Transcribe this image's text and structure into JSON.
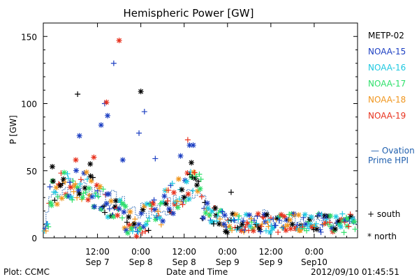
{
  "chart_data": {
    "type": "scatter",
    "title": "Hemispheric Power [GW]",
    "ylabel": "P [GW]",
    "xlabel": "Date and Time",
    "ylim": [
      0,
      160
    ],
    "yticks": [
      0,
      50,
      100,
      150
    ],
    "xlim_hours": [
      0,
      87
    ],
    "x_tick_labels": [
      {
        "time": "12:00",
        "date": "Sep 7"
      },
      {
        "time": "0:00",
        "date": "Sep 8"
      },
      {
        "time": "12:00",
        "date": "Sep 8"
      },
      {
        "time": "0:00",
        "date": "Sep 9"
      },
      {
        "time": "12:00",
        "date": "Sep 9"
      },
      {
        "time": "0:00",
        "date": "Sep10"
      }
    ],
    "series": [
      {
        "name": "METP-02",
        "color": "#000000"
      },
      {
        "name": "NOAA-15",
        "color": "#1c3fc2"
      },
      {
        "name": "NOAA-16",
        "color": "#1ec8e0"
      },
      {
        "name": "NOAA-17",
        "color": "#2ee06a"
      },
      {
        "name": "NOAA-18",
        "color": "#f0961e"
      },
      {
        "name": "NOAA-19",
        "color": "#e8321e"
      }
    ],
    "highlight_points": [
      {
        "series": "METP-02",
        "x": 9.5,
        "y": 107,
        "marker": "+"
      },
      {
        "series": "NOAA-15",
        "x": 10,
        "y": 76,
        "marker": "*"
      },
      {
        "series": "NOAA-15",
        "x": 16,
        "y": 84,
        "marker": "*"
      },
      {
        "series": "NOAA-15",
        "x": 17,
        "y": 100,
        "marker": "+"
      },
      {
        "series": "NOAA-15",
        "x": 17.8,
        "y": 91,
        "marker": "*"
      },
      {
        "series": "NOAA-19",
        "x": 17.5,
        "y": 101,
        "marker": "*"
      },
      {
        "series": "NOAA-15",
        "x": 19.5,
        "y": 130,
        "marker": "+"
      },
      {
        "series": "NOAA-19",
        "x": 21,
        "y": 147,
        "marker": "*"
      },
      {
        "series": "NOAA-15",
        "x": 26.5,
        "y": 78,
        "marker": "+"
      },
      {
        "series": "METP-02",
        "x": 27,
        "y": 109,
        "marker": "*"
      },
      {
        "series": "NOAA-15",
        "x": 28,
        "y": 94,
        "marker": "+"
      },
      {
        "series": "NOAA-19",
        "x": 40,
        "y": 73,
        "marker": "+"
      },
      {
        "series": "NOAA-15",
        "x": 40.5,
        "y": 69,
        "marker": "*"
      },
      {
        "series": "NOAA-15",
        "x": 41.5,
        "y": 69,
        "marker": "*"
      },
      {
        "series": "METP-02",
        "x": 41,
        "y": 56,
        "marker": "*"
      },
      {
        "series": "METP-02",
        "x": 2.5,
        "y": 53,
        "marker": "*"
      },
      {
        "series": "NOAA-19",
        "x": 9,
        "y": 58,
        "marker": "*"
      },
      {
        "series": "METP-02",
        "x": 13,
        "y": 55,
        "marker": "*"
      },
      {
        "series": "NOAA-19",
        "x": 14,
        "y": 60,
        "marker": "*"
      },
      {
        "series": "NOAA-15",
        "x": 22,
        "y": 58,
        "marker": "*"
      },
      {
        "series": "NOAA-15",
        "x": 31,
        "y": 59,
        "marker": "+"
      },
      {
        "series": "NOAA-15",
        "x": 38,
        "y": 61,
        "marker": "*"
      },
      {
        "series": "METP-02",
        "x": 52,
        "y": 34,
        "marker": "+"
      }
    ]
  },
  "legend": {
    "satellites": [
      {
        "label": "METP-02",
        "color": "#000000"
      },
      {
        "label": "NOAA-15",
        "color": "#1c3fc2"
      },
      {
        "label": "NOAA-16",
        "color": "#1ec8e0"
      },
      {
        "label": "NOAA-17",
        "color": "#2ee06a"
      },
      {
        "label": "NOAA-18",
        "color": "#f0961e"
      },
      {
        "label": "NOAA-19",
        "color": "#e8321e"
      }
    ],
    "ovation_line1": "— Ovation",
    "ovation_line2": "Prime HPI",
    "south_label": "+ south",
    "north_label": "* north"
  },
  "footer": {
    "plot_label": "Plot: CCMC",
    "axis_label": "Date and Time",
    "timestamp": "2012/09/10 01:45:51"
  }
}
